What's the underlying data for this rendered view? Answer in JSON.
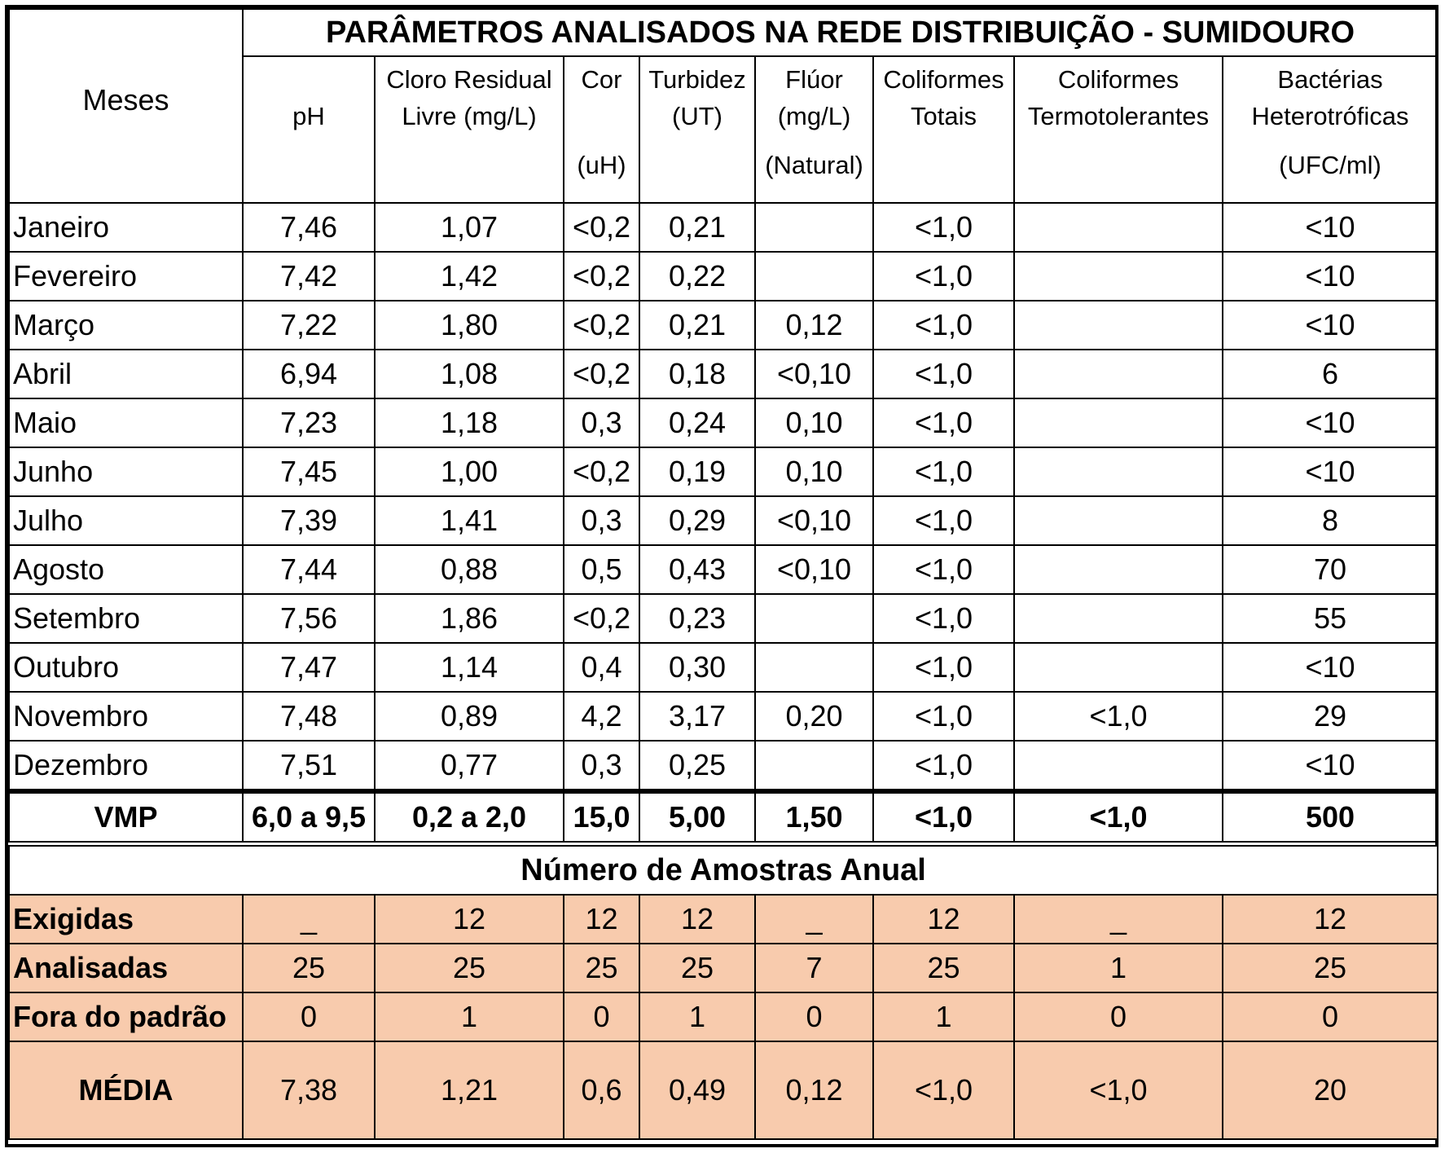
{
  "title": "PARÂMETROS ANALISADOS NA REDE DISTRIBUIÇÃO - SUMIDOURO",
  "header": {
    "meses": "Meses",
    "columns": [
      {
        "l1": "",
        "l2": "pH",
        "l3": ""
      },
      {
        "l1": "Cloro Residual",
        "l2": "Livre (mg/L)",
        "l3": ""
      },
      {
        "l1": "Cor",
        "l2": "",
        "l3": "(uH)"
      },
      {
        "l1": "Turbidez",
        "l2": "(UT)",
        "l3": ""
      },
      {
        "l1": "Flúor",
        "l2": "(mg/L)",
        "l3": "(Natural)"
      },
      {
        "l1": "Coliformes",
        "l2": "Totais",
        "l3": ""
      },
      {
        "l1": "Coliformes",
        "l2": "Termotolerantes",
        "l3": ""
      },
      {
        "l1": "Bactérias",
        "l2": "Heterotróficas",
        "l3": "(UFC/ml)"
      }
    ]
  },
  "rows": [
    {
      "month": "Janeiro",
      "values": [
        "7,46",
        "1,07",
        "<0,2",
        "0,21",
        "",
        "<1,0",
        "",
        "<10"
      ]
    },
    {
      "month": "Fevereiro",
      "values": [
        "7,42",
        "1,42",
        "<0,2",
        "0,22",
        "",
        "<1,0",
        "",
        "<10"
      ]
    },
    {
      "month": "Março",
      "values": [
        "7,22",
        "1,80",
        "<0,2",
        "0,21",
        "0,12",
        "<1,0",
        "",
        "<10"
      ]
    },
    {
      "month": "Abril",
      "values": [
        "6,94",
        "1,08",
        "<0,2",
        "0,18",
        "<0,10",
        "<1,0",
        "",
        "6"
      ]
    },
    {
      "month": "Maio",
      "values": [
        "7,23",
        "1,18",
        "0,3",
        "0,24",
        "0,10",
        "<1,0",
        "",
        "<10"
      ]
    },
    {
      "month": "Junho",
      "values": [
        "7,45",
        "1,00",
        "<0,2",
        "0,19",
        "0,10",
        "<1,0",
        "",
        "<10"
      ]
    },
    {
      "month": "Julho",
      "values": [
        "7,39",
        "1,41",
        "0,3",
        "0,29",
        "<0,10",
        "<1,0",
        "",
        "8"
      ]
    },
    {
      "month": "Agosto",
      "values": [
        "7,44",
        "0,88",
        "0,5",
        "0,43",
        "<0,10",
        "<1,0",
        "",
        "70"
      ]
    },
    {
      "month": "Setembro",
      "values": [
        "7,56",
        "1,86",
        "<0,2",
        "0,23",
        "",
        "<1,0",
        "",
        "55"
      ]
    },
    {
      "month": "Outubro",
      "values": [
        "7,47",
        "1,14",
        "0,4",
        "0,30",
        "",
        "<1,0",
        "",
        "<10"
      ]
    },
    {
      "month": "Novembro",
      "values": [
        "7,48",
        "0,89",
        "4,2",
        "3,17",
        "0,20",
        "<1,0",
        "<1,0",
        "29"
      ]
    },
    {
      "month": "Dezembro",
      "values": [
        "7,51",
        "0,77",
        "0,3",
        "0,25",
        "",
        "<1,0",
        "",
        "<10"
      ]
    }
  ],
  "vmp": {
    "label": "VMP",
    "values": [
      "6,0 a 9,5",
      "0,2 a 2,0",
      "15,0",
      "5,00",
      "1,50",
      "<1,0",
      "<1,0",
      "500"
    ]
  },
  "samples": {
    "title": "Número de Amostras Anual",
    "rows": [
      {
        "label": "Exigidas",
        "values": [
          "_",
          "12",
          "12",
          "12",
          "_",
          "12",
          "_",
          "12"
        ]
      },
      {
        "label": "Analisadas",
        "values": [
          "25",
          "25",
          "25",
          "25",
          "7",
          "25",
          "1",
          "25"
        ]
      },
      {
        "label": "Fora do padrão",
        "values": [
          "0",
          "1",
          "0",
          "1",
          "0",
          "1",
          "0",
          "0"
        ]
      }
    ],
    "media": {
      "label": "MÉDIA",
      "values": [
        "7,38",
        "1,21",
        "0,6",
        "0,49",
        "0,12",
        "<1,0",
        "<1,0",
        "20"
      ]
    }
  }
}
